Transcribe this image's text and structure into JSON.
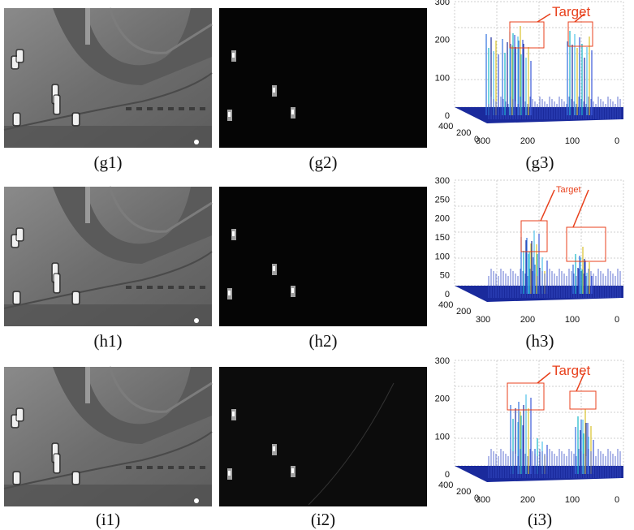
{
  "rows": [
    {
      "captions": [
        "(g1)",
        "(g2)",
        "(g3)"
      ],
      "plot": {
        "annotation": "Target",
        "z_ticks": [
          "0",
          "100",
          "200",
          "300"
        ],
        "depth_ticks": [
          "400",
          "200",
          "0"
        ],
        "width_ticks": [
          "300",
          "200",
          "100",
          "0"
        ]
      }
    },
    {
      "captions": [
        "(h1)",
        "(h2)",
        "(h3)"
      ],
      "plot": {
        "annotation": "Target",
        "z_ticks": [
          "0",
          "50",
          "100",
          "150",
          "200",
          "250",
          "300"
        ],
        "depth_ticks": [
          "400",
          "200"
        ],
        "width_ticks": [
          "300",
          "200",
          "100",
          "0"
        ]
      }
    },
    {
      "captions": [
        "(i1)",
        "(i2)",
        "(i3)"
      ],
      "plot": {
        "annotation": "Target",
        "z_ticks": [
          "0",
          "100",
          "200",
          "300"
        ],
        "depth_ticks": [
          "400",
          "200",
          "0"
        ],
        "width_ticks": [
          "300",
          "200",
          "100",
          "0"
        ]
      }
    }
  ],
  "colors": {
    "annotation": "#e8401c",
    "surface_base": "#1a2a9c",
    "peak": "#2f6fe0"
  }
}
